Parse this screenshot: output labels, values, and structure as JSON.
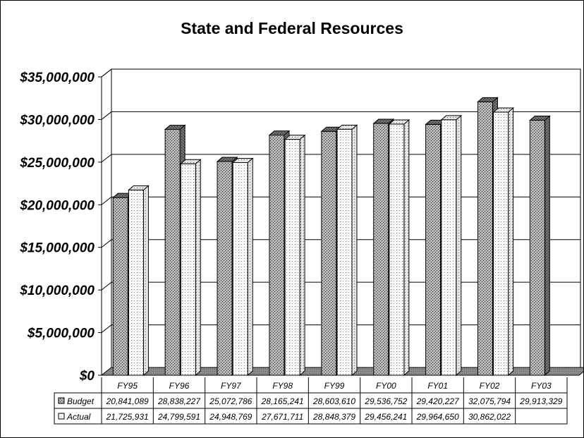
{
  "chart_data": {
    "type": "bar",
    "title": "State and Federal Resources",
    "categories": [
      "FY95",
      "FY96",
      "FY97",
      "FY98",
      "FY99",
      "FY00",
      "FY01",
      "FY02",
      "FY03"
    ],
    "series": [
      {
        "name": "Budget",
        "values": [
          20841089,
          28838227,
          25072786,
          28165241,
          28603610,
          29536752,
          29420227,
          32075794,
          29913329
        ],
        "labels": [
          "20,841,089",
          "28,838,227",
          "25,072,786",
          "28,165,241",
          "28,603,610",
          "29,536,752",
          "29,420,227",
          "32,075,794",
          "29,913,329"
        ]
      },
      {
        "name": "Actual",
        "values": [
          21725931,
          24799591,
          24948769,
          27671711,
          28848379,
          29456241,
          29964650,
          30862022,
          null
        ],
        "labels": [
          "21,725,931",
          "24,799,591",
          "24,948,769",
          "27,671,711",
          "28,848,379",
          "29,456,241",
          "29,964,650",
          "30,862,022",
          ""
        ]
      }
    ],
    "ylim": [
      0,
      35000000
    ],
    "yticks": [
      "$0",
      "$5,000,000",
      "$10,000,000",
      "$15,000,000",
      "$20,000,000",
      "$25,000,000",
      "$30,000,000",
      "$35,000,000"
    ],
    "grid": true,
    "legend": "data-table"
  }
}
